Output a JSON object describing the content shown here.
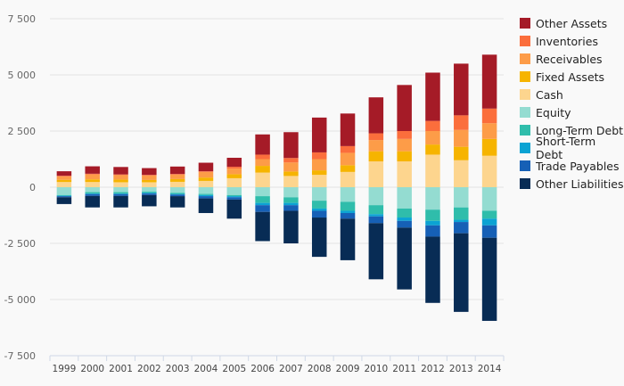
{
  "chart_data": {
    "type": "bar",
    "stacked": true,
    "grid": true,
    "legend_position": "right",
    "categories": [
      "1999",
      "2000",
      "2001",
      "2002",
      "2003",
      "2004",
      "2005",
      "2006",
      "2007",
      "2008",
      "2009",
      "2010",
      "2011",
      "2012",
      "2013",
      "2014"
    ],
    "ylim": [
      -7500,
      7500
    ],
    "yticks": [
      -7500,
      -5000,
      -2500,
      0,
      2500,
      5000,
      7500
    ],
    "ytick_labels": [
      "-7 500",
      "-5 000",
      "-2 500",
      "0",
      "2 500",
      "5 000",
      "7 500"
    ],
    "positive_series": [
      {
        "name": "Cash",
        "color": "#fdd58e",
        "values": [
          230,
          230,
          220,
          220,
          240,
          280,
          400,
          650,
          500,
          550,
          680,
          1150,
          1150,
          1450,
          1200,
          1400
        ]
      },
      {
        "name": "Fixed Assets",
        "color": "#f6b400",
        "values": [
          100,
          120,
          120,
          100,
          120,
          150,
          180,
          300,
          200,
          200,
          300,
          450,
          450,
          450,
          600,
          750
        ]
      },
      {
        "name": "Receivables",
        "color": "#fd9c48",
        "values": [
          150,
          220,
          200,
          200,
          200,
          250,
          250,
          300,
          400,
          500,
          550,
          500,
          550,
          600,
          750,
          700
        ]
      },
      {
        "name": "Inventories",
        "color": "#fb6e3c",
        "values": [
          30,
          30,
          30,
          30,
          30,
          30,
          80,
          200,
          200,
          300,
          300,
          300,
          350,
          450,
          650,
          650
        ]
      },
      {
        "name": "Other Assets",
        "color": "#a51b27",
        "values": [
          200,
          330,
          330,
          300,
          330,
          380,
          400,
          900,
          1150,
          1550,
          1450,
          1600,
          2050,
          2150,
          2300,
          2400
        ]
      }
    ],
    "negative_series": [
      {
        "name": "Equity",
        "color": "#94dcd1",
        "values": [
          -350,
          -220,
          -220,
          -200,
          -250,
          -300,
          -350,
          -400,
          -450,
          -600,
          -650,
          -800,
          -950,
          -1000,
          -900,
          -1050
        ]
      },
      {
        "name": "Long-Term Debt",
        "color": "#2fbdab",
        "values": [
          -30,
          -60,
          -60,
          -50,
          -50,
          -50,
          -50,
          -300,
          -250,
          -350,
          -400,
          -400,
          -400,
          -500,
          -550,
          -350
        ]
      },
      {
        "name": "Short-Term Debt",
        "color": "#0ba3d3",
        "values": [
          -20,
          -30,
          -30,
          -30,
          -30,
          -50,
          -50,
          -100,
          -100,
          -100,
          -100,
          -100,
          -150,
          -200,
          -100,
          -300
        ]
      },
      {
        "name": "Trade Payables",
        "color": "#1660b6",
        "values": [
          -50,
          -80,
          -80,
          -70,
          -70,
          -100,
          -100,
          -300,
          -250,
          -300,
          -250,
          -300,
          -300,
          -500,
          -500,
          -550
        ]
      },
      {
        "name": "Other Liabilities",
        "color": "#082c55",
        "values": [
          -300,
          -510,
          -510,
          -500,
          -500,
          -650,
          -850,
          -1300,
          -1450,
          -1750,
          -1850,
          -2500,
          -2750,
          -2950,
          -3500,
          -3700
        ]
      }
    ],
    "legend": [
      "Other Assets",
      "Inventories",
      "Receivables",
      "Fixed Assets",
      "Cash",
      "Equity",
      "Long-Term Debt",
      "Short-Term Debt",
      "Trade Payables",
      "Other Liabilities"
    ]
  }
}
